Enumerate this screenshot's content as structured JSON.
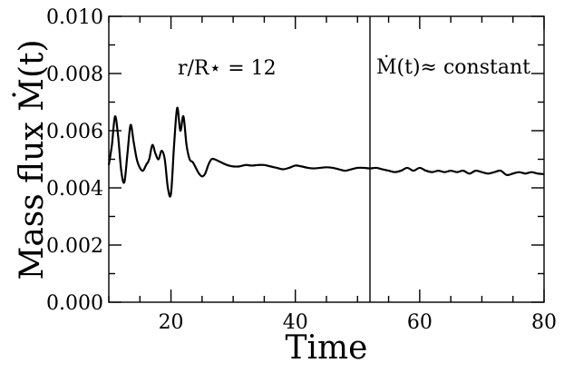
{
  "chart_data": {
    "type": "line",
    "title": "",
    "xlabel": "Time",
    "ylabel": "Mass flux Ṁ(t)",
    "xlim": [
      10,
      80
    ],
    "ylim": [
      0.0,
      0.01
    ],
    "xticks": [
      20,
      40,
      60,
      80
    ],
    "xtick_labels": [
      "20",
      "40",
      "60",
      "80"
    ],
    "yticks": [
      0.0,
      0.002,
      0.004,
      0.006,
      0.008,
      0.01
    ],
    "ytick_labels": [
      "0.000",
      "0.002",
      "0.004",
      "0.006",
      "0.008",
      "0.010"
    ],
    "grid": false,
    "annotations": [
      {
        "text": "r/R⋆ = 12"
      },
      {
        "text": "Ṁ(t)≈ constant"
      }
    ],
    "vertical_line_x": 52,
    "series": [
      {
        "x": [
          10,
          10.5,
          11,
          11.5,
          12,
          12.5,
          13,
          13.5,
          14,
          14.5,
          15,
          15.5,
          16,
          16.5,
          17,
          17.5,
          18,
          18.5,
          19,
          19.5,
          20,
          20.5,
          21,
          21.5,
          22,
          22.5,
          23,
          23.5,
          24,
          24.5,
          25,
          25.5,
          26,
          26.5,
          27,
          28,
          29,
          30,
          31,
          32,
          33,
          34,
          35,
          36,
          37,
          38,
          39,
          40,
          41,
          42,
          43,
          44,
          45,
          46,
          47,
          48,
          49,
          50,
          51,
          52,
          53,
          54,
          55,
          56,
          57,
          58,
          59,
          60,
          61,
          62,
          63,
          64,
          65,
          66,
          67,
          68,
          69,
          70,
          71,
          72,
          73,
          74,
          75,
          76,
          77,
          78,
          79,
          80
        ],
        "y": [
          0.0048,
          0.0055,
          0.0065,
          0.0058,
          0.0046,
          0.0042,
          0.0052,
          0.0062,
          0.0056,
          0.005,
          0.0047,
          0.0046,
          0.0048,
          0.005,
          0.0055,
          0.0052,
          0.005,
          0.0053,
          0.005,
          0.004,
          0.0038,
          0.0055,
          0.0068,
          0.006,
          0.0065,
          0.0055,
          0.005,
          0.0049,
          0.0047,
          0.0045,
          0.0044,
          0.0045,
          0.0048,
          0.005,
          0.005,
          0.0049,
          0.0048,
          0.00475,
          0.00475,
          0.0048,
          0.00478,
          0.0048,
          0.0048,
          0.00475,
          0.0047,
          0.00465,
          0.0047,
          0.00478,
          0.00475,
          0.0047,
          0.00468,
          0.0047,
          0.00472,
          0.0047,
          0.00465,
          0.0046,
          0.00465,
          0.0047,
          0.0047,
          0.00468,
          0.0047,
          0.00465,
          0.0046,
          0.00455,
          0.0046,
          0.0047,
          0.0046,
          0.0047,
          0.0046,
          0.00455,
          0.0046,
          0.00455,
          0.0046,
          0.00455,
          0.0046,
          0.0045,
          0.0046,
          0.00455,
          0.0045,
          0.00455,
          0.0046,
          0.00445,
          0.0045,
          0.00455,
          0.0045,
          0.00455,
          0.0045,
          0.00448
        ]
      }
    ]
  }
}
